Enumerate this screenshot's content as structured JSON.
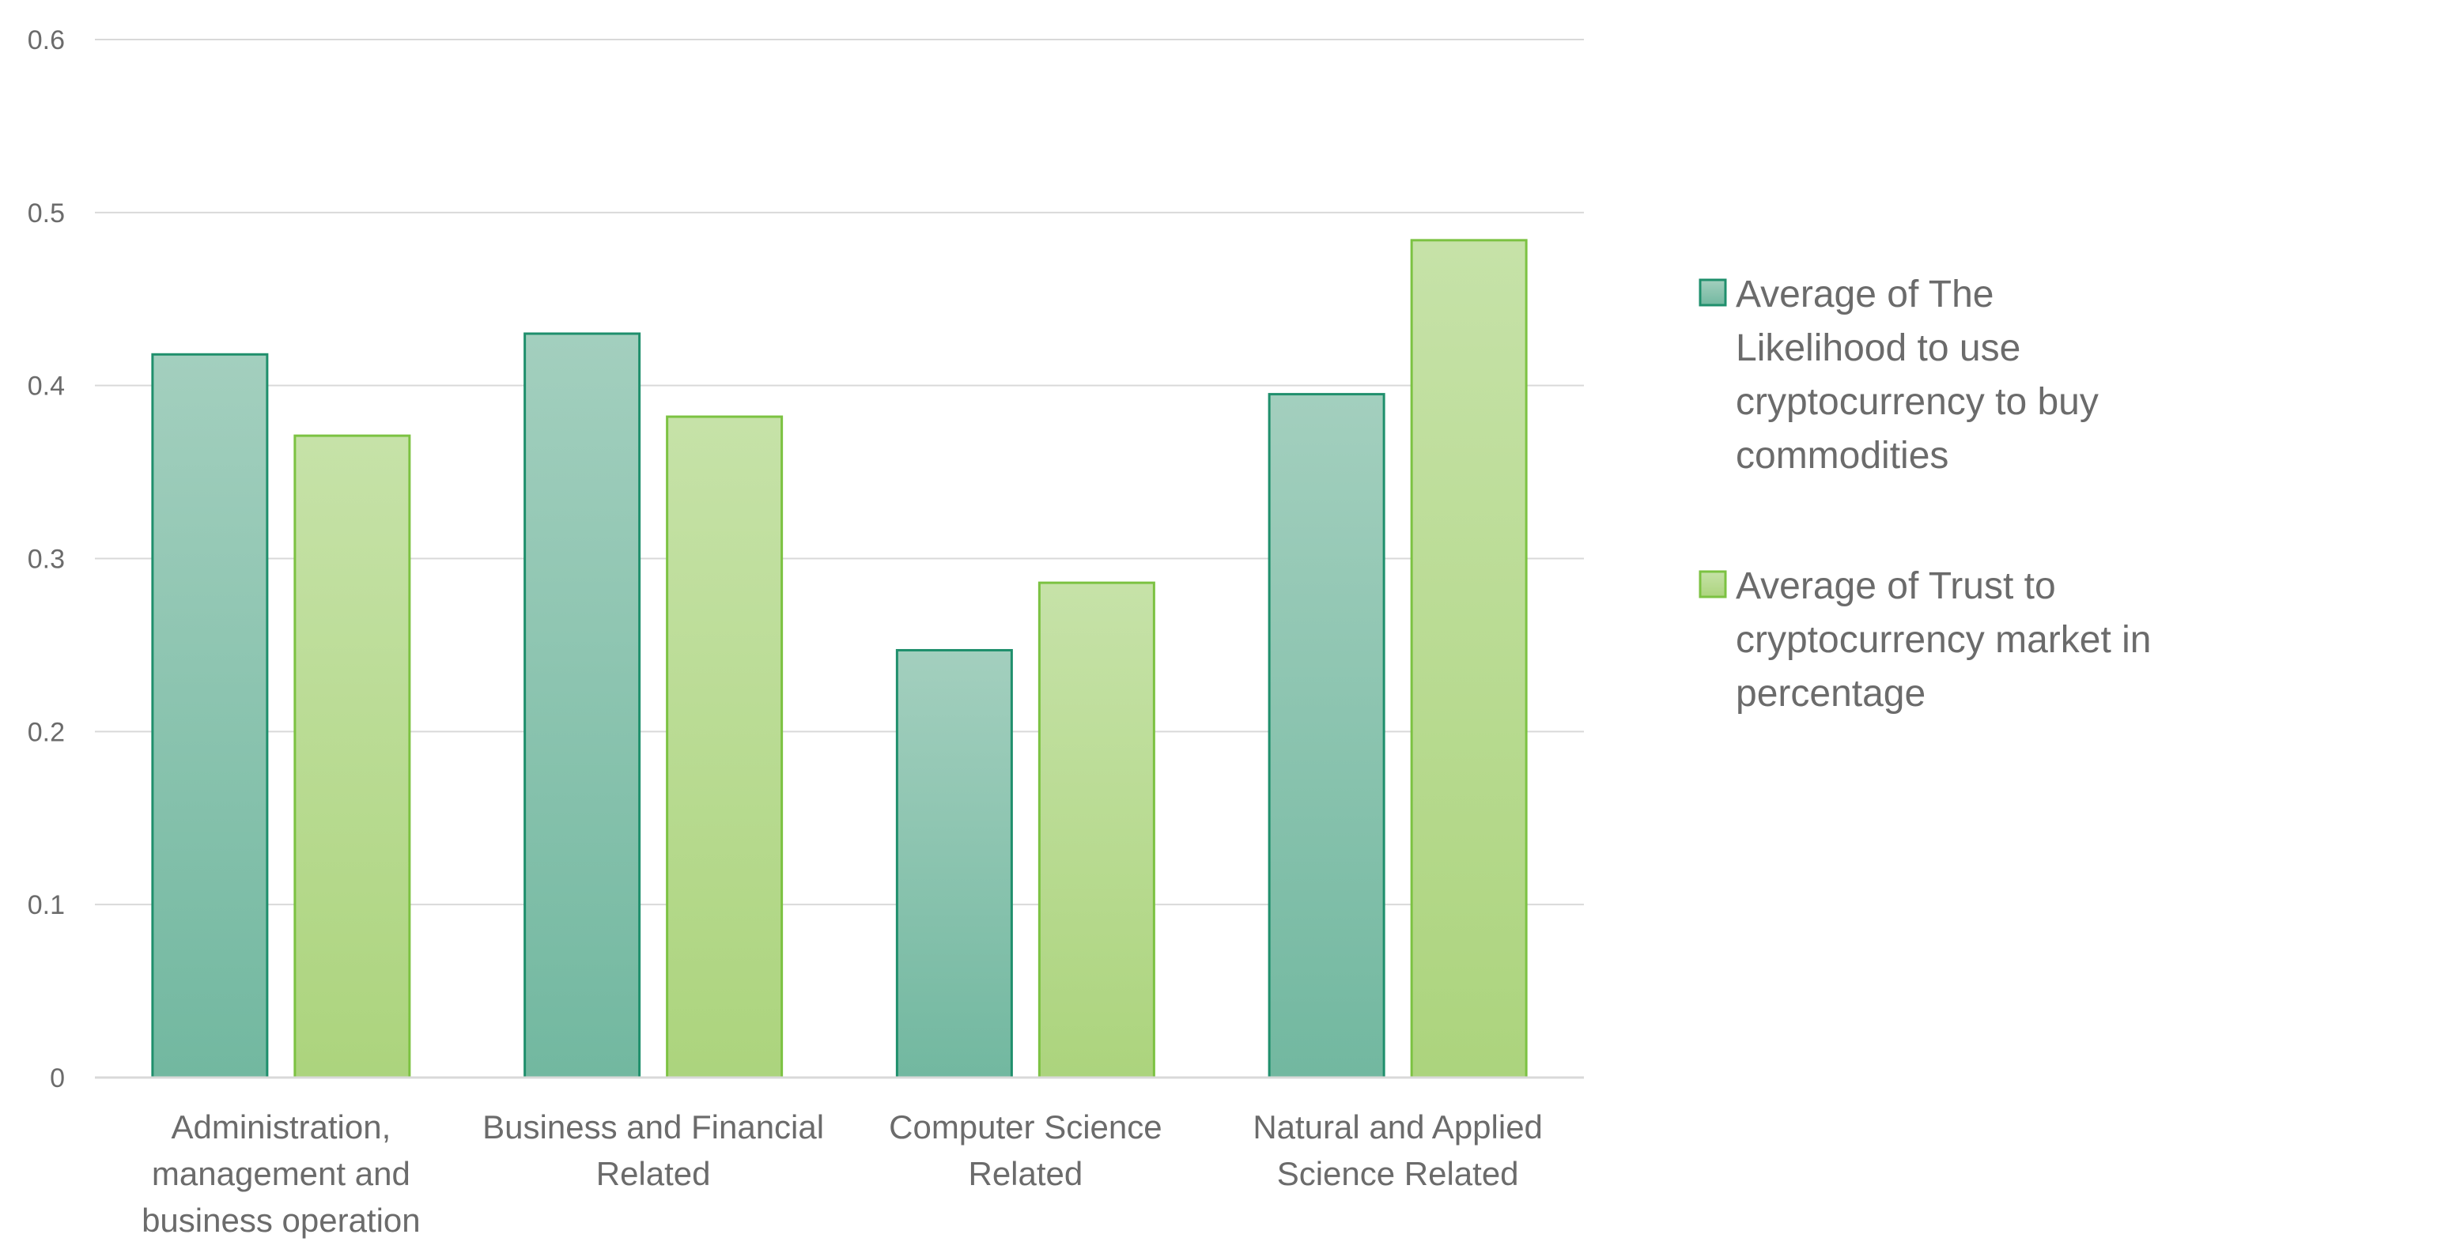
{
  "chart_data": {
    "type": "bar",
    "title": "",
    "xlabel": "",
    "ylabel": "",
    "categories": [
      [
        "Administration,",
        "management and",
        "business operation"
      ],
      [
        "Business and Financial",
        "Related"
      ],
      [
        "Computer Science",
        "Related"
      ],
      [
        "Natural and Applied",
        "Science Related"
      ]
    ],
    "series": [
      {
        "name": [
          "Average of The",
          "Likelihood to use",
          "cryptocurrency to buy",
          "commodities"
        ],
        "values": [
          0.418,
          0.43,
          0.247,
          0.395
        ],
        "color_top": "#a3cfbe",
        "color_bottom": "#72b8a0",
        "stroke": "#1f8f6c"
      },
      {
        "name": [
          "Average of Trust to",
          "cryptocurrency market in",
          "percentage"
        ],
        "values": [
          0.371,
          0.382,
          0.286,
          0.484
        ],
        "color_top": "#c6e2a8",
        "color_bottom": "#acd47d",
        "stroke": "#7cc242"
      }
    ],
    "ylim": [
      0,
      0.6
    ],
    "yticks": [
      "0",
      "0.1",
      "0.2",
      "0.3",
      "0.4",
      "0.5",
      "0.6"
    ],
    "ytick_values": [
      0,
      0.1,
      0.2,
      0.3,
      0.4,
      0.5,
      0.6
    ],
    "grid": true,
    "legend_position": "right",
    "gridline_color": "#d9d9d9",
    "axis_text_color": "#6b6b6b"
  }
}
